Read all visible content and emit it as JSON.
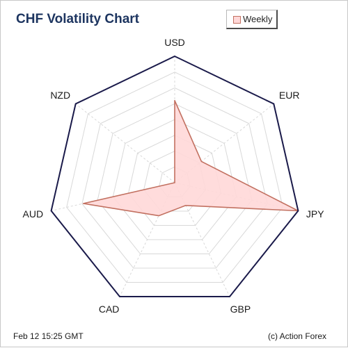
{
  "title": "CHF Volatility Chart",
  "legend": {
    "label": "Weekly"
  },
  "footer": {
    "timestamp": "Feb 12  15:25 GMT",
    "source": "(c) Action Forex"
  },
  "colors": {
    "title": "#1d3560",
    "outline": "#1a1a4a",
    "grid": "#d8d8d8",
    "fill": "#ffd8d8",
    "stroke": "#c27060"
  },
  "chart_data": {
    "type": "radar",
    "categories": [
      "USD",
      "EUR",
      "JPY",
      "GBP",
      "CAD",
      "AUD",
      "NZD"
    ],
    "series": [
      {
        "name": "Weekly",
        "values": [
          0.65,
          0.27,
          1.0,
          0.2,
          0.29,
          0.74,
          0.0
        ]
      }
    ],
    "range": [
      0,
      1
    ],
    "grid_rings": 8,
    "grid": true,
    "legend_position": "top-right"
  }
}
